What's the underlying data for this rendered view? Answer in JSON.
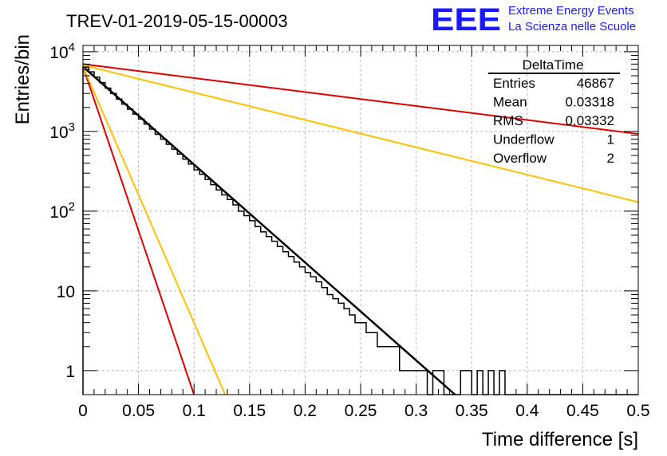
{
  "chart_data": {
    "type": "histogram",
    "title": "TREV-01-2019-05-15-00003",
    "xlabel": "Time difference [s]",
    "ylabel": "Entries/bin",
    "xlim": [
      0,
      0.5
    ],
    "ylim": [
      0.5,
      12000
    ],
    "yscale": "log",
    "grid": true,
    "x_ticks": [
      "0",
      "0.05",
      "0.1",
      "0.15",
      "0.2",
      "0.25",
      "0.3",
      "0.35",
      "0.4",
      "0.45",
      "0.5"
    ],
    "x_tick_values": [
      0,
      0.05,
      0.1,
      0.15,
      0.2,
      0.25,
      0.3,
      0.35,
      0.4,
      0.45,
      0.5
    ],
    "y_ticks": [
      {
        "value": 10000,
        "base": "10",
        "exp": "4"
      },
      {
        "value": 1000,
        "base": "10",
        "exp": "3"
      },
      {
        "value": 100,
        "base": "10",
        "exp": "2"
      },
      {
        "value": 10,
        "base": "10",
        "exp": ""
      },
      {
        "value": 1,
        "base": "1",
        "exp": ""
      }
    ],
    "histogram": {
      "bin_width": 0.005,
      "bin_start": 0,
      "values": [
        6400,
        5600,
        4800,
        4100,
        3500,
        3000,
        2550,
        2200,
        1900,
        1650,
        1430,
        1240,
        1070,
        920,
        800,
        690,
        600,
        520,
        450,
        390,
        330,
        290,
        250,
        215,
        185,
        160,
        140,
        120,
        100,
        88,
        76,
        64,
        55,
        48,
        42,
        36,
        31,
        27,
        23,
        20,
        17,
        15,
        13,
        11,
        9,
        8,
        7,
        6,
        5,
        4,
        4,
        3,
        3,
        2,
        2,
        2,
        2,
        1,
        1,
        1,
        1,
        1,
        0,
        1,
        1,
        0,
        0,
        0,
        1,
        1,
        0,
        1,
        0,
        1,
        0,
        1,
        0,
        0,
        0,
        0,
        0,
        0,
        0,
        0,
        0,
        0,
        0,
        0,
        0,
        0,
        0,
        0,
        0,
        0,
        0,
        0,
        0,
        0,
        0,
        0
      ]
    },
    "fits": [
      {
        "color": "#000000",
        "x": [
          0,
          0.335
        ],
        "y": [
          6500,
          0.5
        ]
      },
      {
        "color": "#e00000",
        "x": [
          0,
          0.5
        ],
        "y": [
          7000,
          930
        ]
      },
      {
        "color": "#ffc000",
        "x": [
          0,
          0.5
        ],
        "y": [
          6800,
          130
        ]
      },
      {
        "color": "#e00000",
        "x": [
          0,
          0.1
        ],
        "y": [
          6500,
          0.5
        ]
      },
      {
        "color": "#ffc000",
        "x": [
          0,
          0.128
        ],
        "y": [
          6500,
          0.5
        ]
      }
    ],
    "stats": {
      "name": "DeltaTime",
      "rows": [
        {
          "label": "Entries",
          "value": "46867"
        },
        {
          "label": "Mean",
          "value": "0.03318"
        },
        {
          "label": "RMS",
          "value": "0.03332"
        },
        {
          "label": "Underflow",
          "value": "1"
        },
        {
          "label": "Overflow",
          "value": "2"
        }
      ]
    }
  },
  "logo": {
    "mark": "EEE",
    "line1": "Extreme Energy Events",
    "line2": "La Scienza nelle Scuole"
  }
}
